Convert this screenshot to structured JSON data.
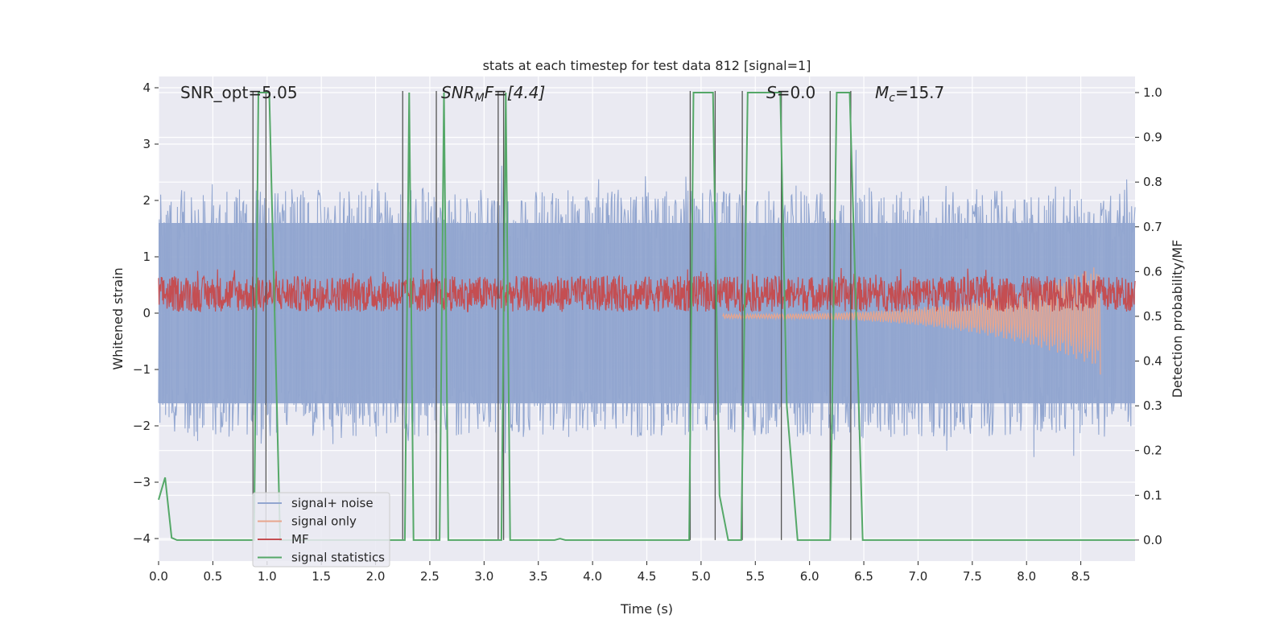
{
  "chart_data": {
    "type": "line",
    "title": "stats at each timestep for test data 812 [signal=1]",
    "xlabel": "Time (s)",
    "ylabel_left": "Whitened strain",
    "ylabel_right": "Detection probability/MF",
    "xlim": [
      0.0,
      9.0
    ],
    "ylim_left": [
      -4.4,
      4.2
    ],
    "ylim_right": [
      -0.047,
      1.036
    ],
    "x_ticks": [
      "0.0",
      "0.5",
      "1.0",
      "1.5",
      "2.0",
      "2.5",
      "3.0",
      "3.5",
      "4.0",
      "4.5",
      "5.0",
      "5.5",
      "6.0",
      "6.5",
      "7.0",
      "7.5",
      "8.0",
      "8.5"
    ],
    "y_ticks_left": [
      "4",
      "3",
      "2",
      "1",
      "0",
      "−1",
      "−2",
      "−3",
      "−4"
    ],
    "y_ticks_right": [
      "1.0",
      "0.9",
      "0.8",
      "0.7",
      "0.6",
      "0.5",
      "0.4",
      "0.3",
      "0.2",
      "0.1",
      "0.0"
    ],
    "grid": true,
    "legend_position": "lower-left",
    "annotations": {
      "snr_opt": "SNR_opt=5.05",
      "snr_mf_base": "SNR",
      "snr_mf_sub": "M",
      "snr_mf_rest": "F=[4.4]",
      "s_sym": "S",
      "s_rest": "=0.0",
      "mc_base": "M",
      "mc_sub": "c",
      "mc_rest": "=15.7"
    },
    "series": [
      {
        "name": "signal+ noise",
        "color": "#92a6d0",
        "axis": "left",
        "noise_envelope": [
          -2.5,
          2.5
        ]
      },
      {
        "name": "signal only",
        "color": "#e8a58d",
        "axis": "right",
        "chirp_end_time": 8.68,
        "chirp_min": 0.37
      },
      {
        "name": "MF",
        "color": "#c44e52",
        "axis": "right",
        "band": [
          0.51,
          0.59
        ]
      },
      {
        "name": "signal statistics",
        "color": "#55a868",
        "axis": "right",
        "x": [
          0.0,
          0.06,
          0.12,
          0.17,
          0.88,
          0.92,
          1.02,
          1.12,
          1.17,
          2.23,
          2.27,
          2.31,
          2.35,
          2.55,
          2.59,
          2.63,
          2.67,
          3.12,
          3.16,
          3.2,
          3.24,
          3.3,
          3.65,
          3.7,
          3.75,
          4.89,
          4.93,
          5.11,
          5.17,
          5.25,
          5.37,
          5.43,
          5.73,
          5.79,
          5.89,
          6.19,
          6.25,
          6.37,
          6.49,
          9.0
        ],
        "y": [
          0.09,
          0.14,
          0.005,
          0.0,
          0.0,
          1.0,
          1.0,
          0.0,
          0.0,
          0.0,
          0.0,
          1.0,
          0.0,
          0.0,
          0.0,
          1.0,
          0.0,
          0.0,
          0.0,
          1.0,
          0.0,
          0.0,
          0.0,
          0.003,
          0.0,
          0.0,
          1.0,
          1.0,
          0.1,
          0.0,
          0.0,
          1.0,
          1.0,
          0.3,
          0.0,
          0.0,
          1.0,
          1.0,
          0.0,
          0.0
        ]
      }
    ],
    "vertical_lines_x": [
      0.87,
      0.99,
      2.25,
      2.56,
      3.13,
      3.18,
      4.9,
      5.13,
      5.38,
      5.74,
      6.19,
      6.38
    ]
  }
}
